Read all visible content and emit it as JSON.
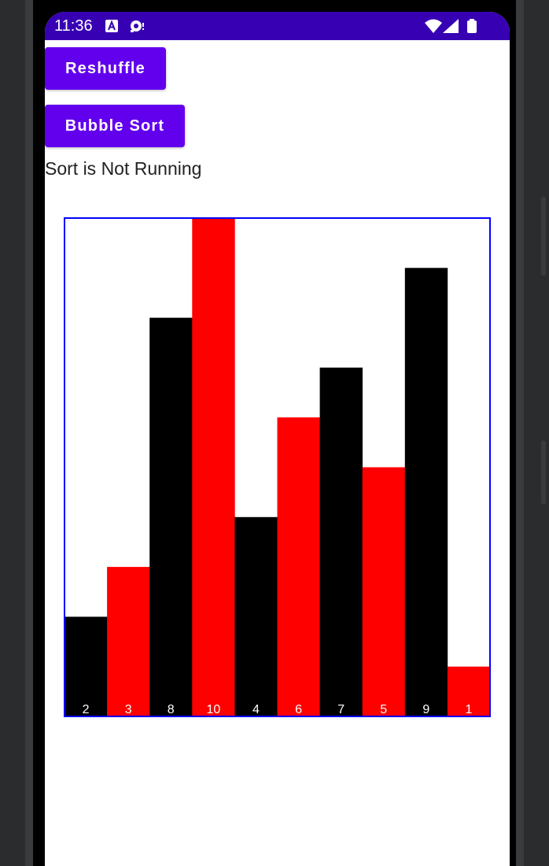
{
  "status_bar": {
    "time": "11:36",
    "bg_color": "#3700b3",
    "icons": [
      "a11y-notification-icon",
      "bug-notification-icon",
      "wifi-icon",
      "cellular-signal-icon",
      "battery-icon"
    ]
  },
  "controls": {
    "reshuffle_label": "Reshuffle",
    "sort_label": "Bubble Sort",
    "button_color": "#6200ee"
  },
  "sort_status": "Sort is Not Running",
  "chart_data": {
    "type": "bar",
    "categories": [
      "2",
      "3",
      "8",
      "10",
      "4",
      "6",
      "7",
      "5",
      "9",
      "1"
    ],
    "values": [
      2,
      3,
      8,
      10,
      4,
      6,
      7,
      5,
      9,
      1
    ],
    "colors": [
      "#000000",
      "#ff0000",
      "#000000",
      "#ff0000",
      "#000000",
      "#ff0000",
      "#000000",
      "#ff0000",
      "#000000",
      "#ff0000"
    ],
    "ylim": [
      0,
      10
    ],
    "border_color": "#0000ff",
    "label_color": "#ffffff",
    "title": "",
    "xlabel": "",
    "ylabel": ""
  }
}
